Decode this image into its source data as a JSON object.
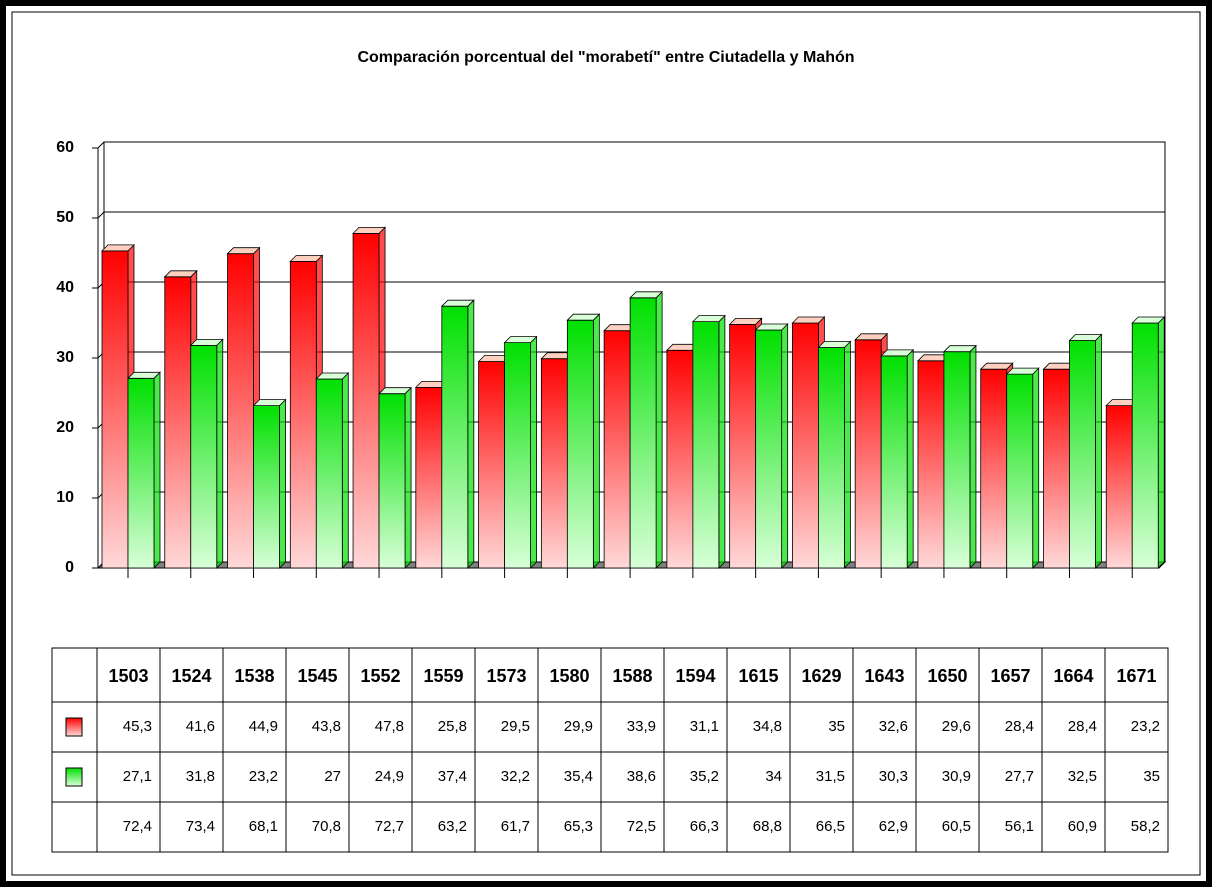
{
  "chart_data": {
    "type": "bar",
    "title": "Comparación porcentual del \"morabetí\" entre Ciutadella y Mahón",
    "categories": [
      "1503",
      "1524",
      "1538",
      "1545",
      "1552",
      "1559",
      "1573",
      "1580",
      "1588",
      "1594",
      "1615",
      "1629",
      "1643",
      "1650",
      "1657",
      "1664",
      "1671"
    ],
    "series": [
      {
        "color": "#ff0000",
        "values": [
          45.3,
          41.6,
          44.9,
          43.8,
          47.8,
          25.8,
          29.5,
          29.9,
          33.9,
          31.1,
          34.8,
          35,
          32.6,
          29.6,
          28.4,
          28.4,
          23.2
        ],
        "value_labels": [
          "45,3",
          "41,6",
          "44,9",
          "43,8",
          "47,8",
          "25,8",
          "29,5",
          "29,9",
          "33,9",
          "31,1",
          "34,8",
          "35",
          "32,6",
          "29,6",
          "28,4",
          "28,4",
          "23,2"
        ]
      },
      {
        "color": "#00e000",
        "values": [
          27.1,
          31.8,
          23.2,
          27,
          24.9,
          37.4,
          32.2,
          35.4,
          38.6,
          35.2,
          34,
          31.5,
          30.3,
          30.9,
          27.7,
          32.5,
          35
        ],
        "value_labels": [
          "27,1",
          "31,8",
          "23,2",
          "27",
          "24,9",
          "37,4",
          "32,2",
          "35,4",
          "38,6",
          "35,2",
          "34",
          "31,5",
          "30,3",
          "30,9",
          "27,7",
          "32,5",
          "35"
        ]
      },
      {
        "values": [
          72.4,
          73.4,
          68.1,
          70.8,
          72.7,
          63.2,
          61.7,
          65.3,
          72.5,
          66.3,
          68.8,
          66.5,
          62.9,
          60.5,
          56.1,
          60.9,
          58.2
        ],
        "value_labels": [
          "72,4",
          "73,4",
          "68,1",
          "70,8",
          "72,7",
          "63,2",
          "61,7",
          "65,3",
          "72,5",
          "66,3",
          "68,8",
          "66,5",
          "62,9",
          "60,5",
          "56,1",
          "60,9",
          "58,2"
        ]
      }
    ],
    "ylim": [
      0,
      60
    ],
    "yticks": [
      0,
      10,
      20,
      30,
      40,
      50,
      60
    ],
    "grid": true
  }
}
